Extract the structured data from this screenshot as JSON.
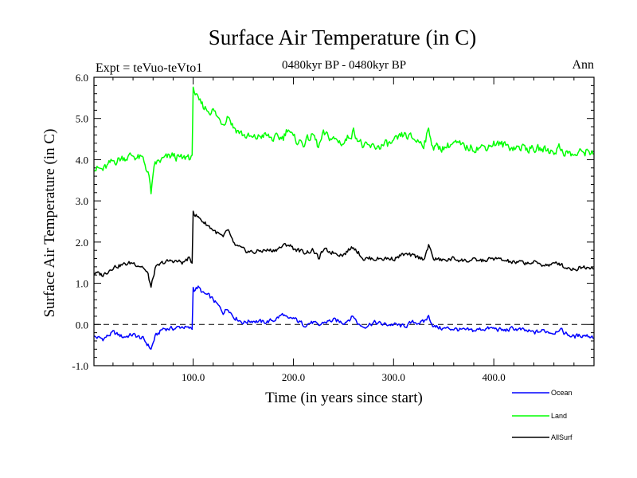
{
  "chart_data": {
    "type": "line",
    "title": "Surface Air Temperature (in C)",
    "subtitle_left": "Expt = teVuo-teVto1",
    "subtitle_center": "0480kyr BP - 0480kyr BP",
    "subtitle_right": "Ann",
    "xlabel": "Time (in years since start)",
    "ylabel": "Surface Air Temperature (in C)",
    "xlim": [
      1,
      500
    ],
    "ylim": [
      -1.0,
      6.0
    ],
    "xticks": [
      100,
      200,
      300,
      400
    ],
    "xtick_labels": [
      "100.0",
      "200.0",
      "300.0",
      "400.0"
    ],
    "yticks": [
      -1,
      0,
      1,
      2,
      3,
      4,
      5,
      6
    ],
    "ytick_labels": [
      "-1.0",
      "0.0",
      "1.0",
      "2.0",
      "3.0",
      "4.0",
      "5.0",
      "6.0"
    ],
    "reference_line": {
      "y": 0.0,
      "style": "dashed"
    },
    "legend_position": "bottom-right, outside plot",
    "series": [
      {
        "name": "Ocean",
        "color": "#0000ff",
        "x": [
          1,
          10,
          20,
          30,
          40,
          50,
          55,
          58,
          62,
          70,
          80,
          90,
          95,
          99,
          100,
          101,
          105,
          110,
          115,
          120,
          125,
          130,
          135,
          140,
          150,
          160,
          170,
          180,
          190,
          195,
          200,
          210,
          220,
          225,
          230,
          240,
          250,
          260,
          265,
          270,
          280,
          290,
          300,
          310,
          320,
          330,
          335,
          340,
          350,
          360,
          370,
          380,
          390,
          400,
          410,
          420,
          430,
          440,
          450,
          460,
          465,
          470,
          480,
          490,
          500
        ],
        "values": [
          -0.3,
          -0.35,
          -0.2,
          -0.3,
          -0.25,
          -0.35,
          -0.5,
          -0.6,
          -0.3,
          -0.1,
          -0.1,
          -0.05,
          -0.1,
          -0.1,
          0.9,
          0.85,
          0.9,
          0.75,
          0.7,
          0.6,
          0.45,
          0.3,
          0.4,
          0.2,
          0.05,
          0.1,
          0.05,
          0.1,
          0.25,
          0.1,
          0.15,
          0.0,
          0.05,
          -0.05,
          0.05,
          0.1,
          0.05,
          0.2,
          0.0,
          -0.05,
          0.05,
          0.0,
          0.0,
          -0.05,
          0.05,
          0.05,
          0.2,
          -0.05,
          -0.1,
          -0.1,
          -0.15,
          -0.15,
          -0.1,
          -0.1,
          -0.15,
          -0.1,
          -0.15,
          -0.2,
          -0.15,
          -0.2,
          -0.1,
          -0.2,
          -0.3,
          -0.25,
          -0.3
        ]
      },
      {
        "name": "Land",
        "color": "#00ff00",
        "x": [
          1,
          10,
          20,
          30,
          40,
          50,
          55,
          58,
          62,
          70,
          80,
          90,
          95,
          99,
          100,
          101,
          105,
          110,
          115,
          120,
          125,
          130,
          135,
          140,
          150,
          160,
          170,
          180,
          190,
          195,
          200,
          210,
          220,
          225,
          230,
          240,
          250,
          260,
          265,
          270,
          280,
          290,
          300,
          310,
          320,
          330,
          335,
          340,
          350,
          360,
          370,
          380,
          390,
          400,
          410,
          420,
          430,
          440,
          450,
          460,
          465,
          470,
          480,
          490,
          500
        ],
        "values": [
          3.8,
          3.75,
          3.95,
          4.05,
          4.1,
          4.0,
          3.7,
          3.2,
          3.9,
          4.0,
          4.1,
          4.0,
          4.1,
          4.0,
          5.8,
          5.7,
          5.4,
          5.3,
          5.2,
          5.2,
          5.0,
          4.9,
          5.1,
          4.8,
          4.6,
          4.5,
          4.6,
          4.5,
          4.55,
          4.8,
          4.5,
          4.4,
          4.6,
          4.3,
          4.6,
          4.5,
          4.4,
          4.7,
          4.5,
          4.3,
          4.3,
          4.35,
          4.4,
          4.6,
          4.5,
          4.4,
          4.7,
          4.3,
          4.3,
          4.4,
          4.3,
          4.3,
          4.3,
          4.4,
          4.35,
          4.3,
          4.3,
          4.25,
          4.25,
          4.2,
          4.3,
          4.2,
          4.1,
          4.2,
          4.2
        ]
      },
      {
        "name": "AllSurf",
        "color": "#000000",
        "x": [
          1,
          10,
          20,
          30,
          40,
          50,
          55,
          58,
          62,
          70,
          80,
          90,
          95,
          99,
          100,
          101,
          105,
          110,
          115,
          120,
          125,
          130,
          135,
          140,
          150,
          160,
          170,
          180,
          190,
          195,
          200,
          210,
          220,
          225,
          230,
          240,
          250,
          260,
          265,
          270,
          280,
          290,
          300,
          310,
          320,
          330,
          335,
          340,
          350,
          360,
          370,
          380,
          390,
          400,
          410,
          420,
          430,
          440,
          450,
          460,
          465,
          470,
          480,
          490,
          500
        ],
        "values": [
          1.25,
          1.2,
          1.4,
          1.45,
          1.5,
          1.4,
          1.2,
          0.9,
          1.35,
          1.5,
          1.55,
          1.5,
          1.6,
          1.5,
          2.8,
          2.7,
          2.6,
          2.5,
          2.4,
          2.3,
          2.2,
          2.1,
          2.3,
          1.95,
          1.8,
          1.75,
          1.8,
          1.8,
          1.9,
          1.95,
          1.85,
          1.75,
          1.8,
          1.6,
          1.8,
          1.75,
          1.7,
          1.9,
          1.75,
          1.6,
          1.6,
          1.6,
          1.6,
          1.7,
          1.65,
          1.6,
          1.9,
          1.6,
          1.55,
          1.6,
          1.55,
          1.55,
          1.55,
          1.6,
          1.55,
          1.5,
          1.5,
          1.5,
          1.45,
          1.45,
          1.5,
          1.4,
          1.35,
          1.4,
          1.4
        ]
      }
    ]
  }
}
